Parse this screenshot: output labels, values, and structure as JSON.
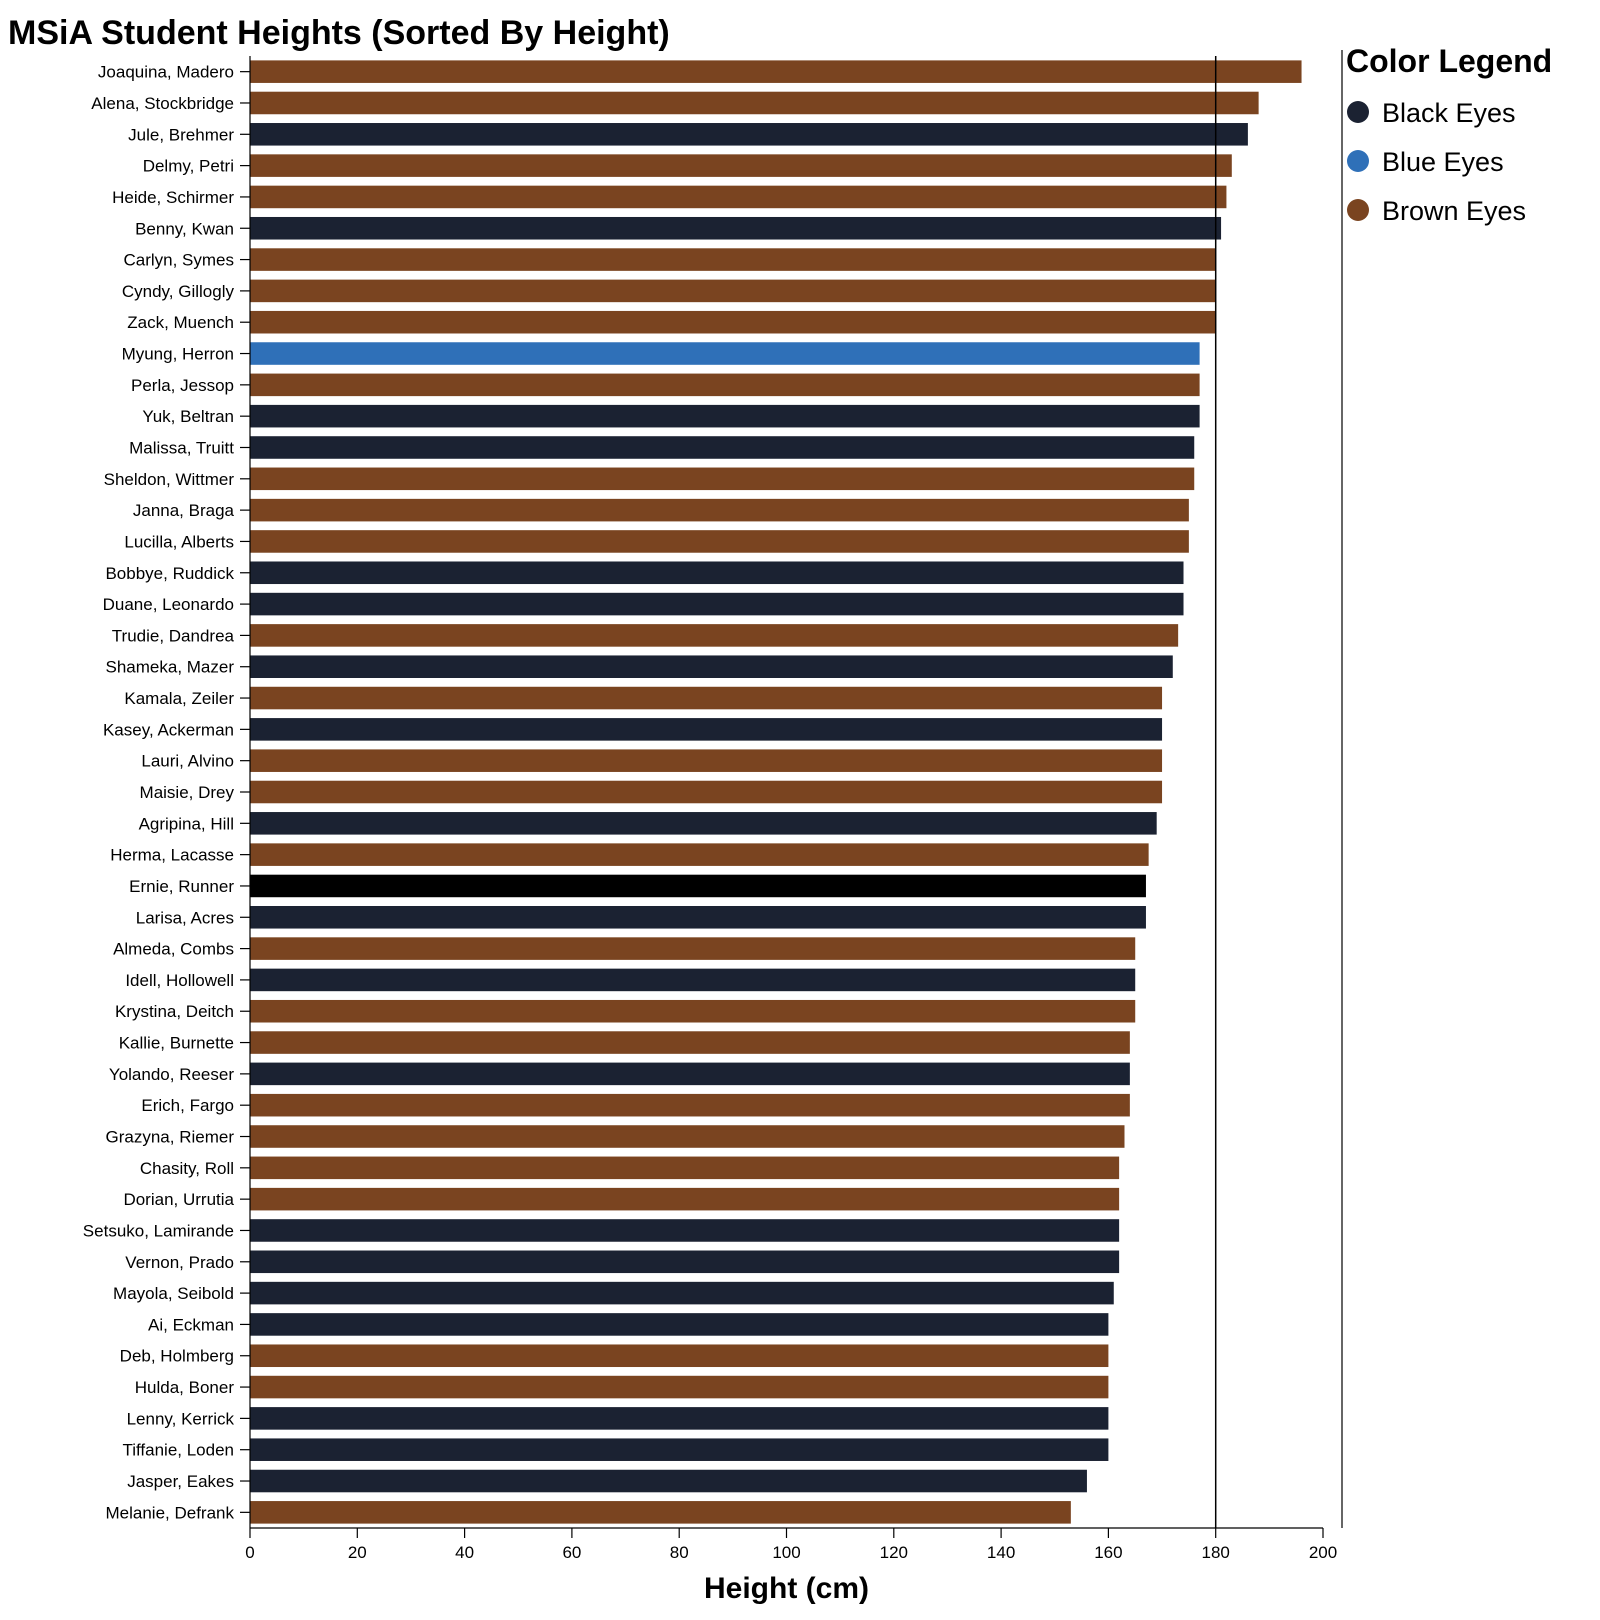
{
  "chart_data": {
    "type": "bar",
    "orientation": "horizontal",
    "title": "MSiA Student Heights (Sorted By Height)",
    "xlabel": "Height (cm)",
    "ylabel": "",
    "xlim": [
      0,
      200
    ],
    "x_ticks": [
      0,
      20,
      40,
      60,
      80,
      100,
      120,
      140,
      160,
      180,
      200
    ],
    "reference_line_x": 180,
    "grid": false,
    "legend": {
      "title": "Color Legend",
      "placement": "right",
      "entries": [
        {
          "label": "Black Eyes",
          "color": "#1b2232"
        },
        {
          "label": "Blue Eyes",
          "color": "#2f70b8"
        },
        {
          "label": "Brown Eyes",
          "color": "#7a4420"
        }
      ]
    },
    "highlight_color": "#000000",
    "bars": [
      {
        "name": "Joaquina, Madero",
        "value": 196,
        "eyes": "Brown Eyes"
      },
      {
        "name": "Alena, Stockbridge",
        "value": 188,
        "eyes": "Brown Eyes"
      },
      {
        "name": "Jule, Brehmer",
        "value": 186,
        "eyes": "Black Eyes"
      },
      {
        "name": "Delmy, Petri",
        "value": 183,
        "eyes": "Brown Eyes"
      },
      {
        "name": "Heide, Schirmer",
        "value": 182,
        "eyes": "Brown Eyes"
      },
      {
        "name": "Benny, Kwan",
        "value": 181,
        "eyes": "Black Eyes"
      },
      {
        "name": "Carlyn, Symes",
        "value": 180,
        "eyes": "Brown Eyes"
      },
      {
        "name": "Cyndy, Gillogly",
        "value": 180,
        "eyes": "Brown Eyes"
      },
      {
        "name": "Zack, Muench",
        "value": 180,
        "eyes": "Brown Eyes"
      },
      {
        "name": "Myung, Herron",
        "value": 177,
        "eyes": "Blue Eyes"
      },
      {
        "name": "Perla, Jessop",
        "value": 177,
        "eyes": "Brown Eyes"
      },
      {
        "name": "Yuk, Beltran",
        "value": 177,
        "eyes": "Black Eyes"
      },
      {
        "name": "Malissa, Truitt",
        "value": 176,
        "eyes": "Black Eyes"
      },
      {
        "name": "Sheldon, Wittmer",
        "value": 176,
        "eyes": "Brown Eyes"
      },
      {
        "name": "Janna, Braga",
        "value": 175,
        "eyes": "Brown Eyes"
      },
      {
        "name": "Lucilla, Alberts",
        "value": 175,
        "eyes": "Brown Eyes"
      },
      {
        "name": "Bobbye, Ruddick",
        "value": 174,
        "eyes": "Black Eyes"
      },
      {
        "name": "Duane, Leonardo",
        "value": 174,
        "eyes": "Black Eyes"
      },
      {
        "name": "Trudie, Dandrea",
        "value": 173,
        "eyes": "Brown Eyes"
      },
      {
        "name": "Shameka, Mazer",
        "value": 172,
        "eyes": "Black Eyes"
      },
      {
        "name": "Kamala, Zeiler",
        "value": 170,
        "eyes": "Brown Eyes"
      },
      {
        "name": "Kasey, Ackerman",
        "value": 170,
        "eyes": "Black Eyes"
      },
      {
        "name": "Lauri, Alvino",
        "value": 170,
        "eyes": "Brown Eyes"
      },
      {
        "name": "Maisie, Drey",
        "value": 170,
        "eyes": "Brown Eyes"
      },
      {
        "name": "Agripina, Hill",
        "value": 169,
        "eyes": "Black Eyes"
      },
      {
        "name": "Herma, Lacasse",
        "value": 167.5,
        "eyes": "Brown Eyes"
      },
      {
        "name": "Ernie, Runner",
        "value": 167,
        "eyes": "Black Eyes",
        "highlighted": true
      },
      {
        "name": "Larisa, Acres",
        "value": 167,
        "eyes": "Black Eyes"
      },
      {
        "name": "Almeda, Combs",
        "value": 165,
        "eyes": "Brown Eyes"
      },
      {
        "name": "Idell, Hollowell",
        "value": 165,
        "eyes": "Black Eyes"
      },
      {
        "name": "Krystina, Deitch",
        "value": 165,
        "eyes": "Brown Eyes"
      },
      {
        "name": "Kallie, Burnette",
        "value": 164,
        "eyes": "Brown Eyes"
      },
      {
        "name": "Yolando, Reeser",
        "value": 164,
        "eyes": "Black Eyes"
      },
      {
        "name": "Erich, Fargo",
        "value": 164,
        "eyes": "Brown Eyes"
      },
      {
        "name": "Grazyna, Riemer",
        "value": 163,
        "eyes": "Brown Eyes"
      },
      {
        "name": "Chasity, Roll",
        "value": 162,
        "eyes": "Brown Eyes"
      },
      {
        "name": "Dorian, Urrutia",
        "value": 162,
        "eyes": "Brown Eyes"
      },
      {
        "name": "Setsuko, Lamirande",
        "value": 162,
        "eyes": "Black Eyes"
      },
      {
        "name": "Vernon, Prado",
        "value": 162,
        "eyes": "Black Eyes"
      },
      {
        "name": "Mayola, Seibold",
        "value": 161,
        "eyes": "Black Eyes"
      },
      {
        "name": "Ai, Eckman",
        "value": 160,
        "eyes": "Black Eyes"
      },
      {
        "name": "Deb, Holmberg",
        "value": 160,
        "eyes": "Brown Eyes"
      },
      {
        "name": "Hulda, Boner",
        "value": 160,
        "eyes": "Brown Eyes"
      },
      {
        "name": "Lenny, Kerrick",
        "value": 160,
        "eyes": "Black Eyes"
      },
      {
        "name": "Tiffanie, Loden",
        "value": 160,
        "eyes": "Black Eyes"
      },
      {
        "name": "Jasper, Eakes",
        "value": 156,
        "eyes": "Black Eyes"
      },
      {
        "name": "Melanie, Defrank",
        "value": 153,
        "eyes": "Brown Eyes"
      }
    ]
  }
}
